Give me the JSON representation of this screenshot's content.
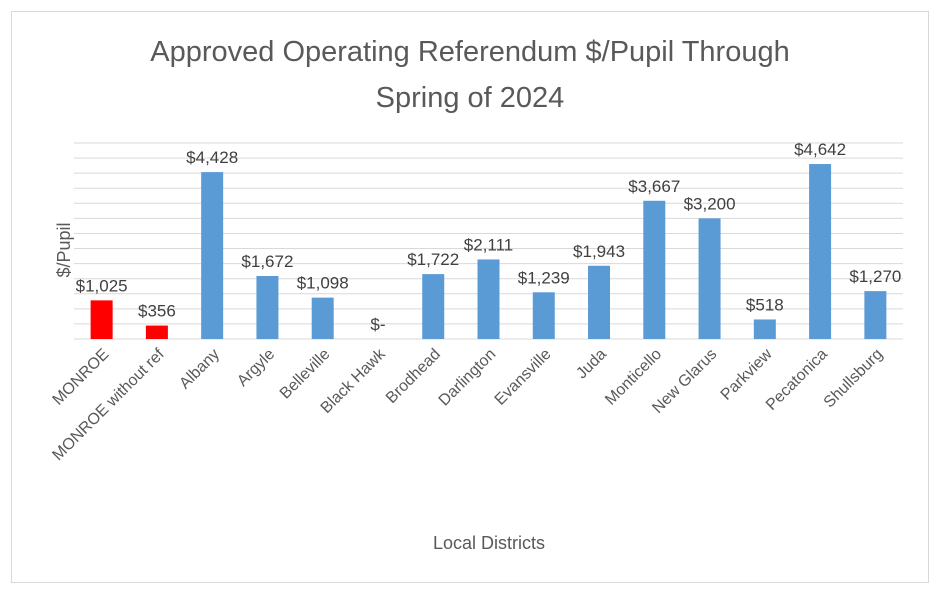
{
  "chart_data": {
    "type": "bar",
    "title": [
      "Approved Operating Referendum $/Pupil Through",
      "Spring of 2024"
    ],
    "xlabel": "Local Districts",
    "ylabel": "$/Pupil",
    "ylim": [
      0,
      5200
    ],
    "grid": true,
    "categories": [
      "MONROE",
      "MONROE without ref",
      "Albany",
      "Argyle",
      "Belleville",
      "Black Hawk",
      "Brodhead",
      "Darlington",
      "Evansville",
      "Juda",
      "Monticello",
      "New Glarus",
      "Parkview",
      "Pecatonica",
      "Shullsburg"
    ],
    "values": [
      1025,
      356,
      4428,
      1672,
      1098,
      0,
      1722,
      2111,
      1239,
      1943,
      3667,
      3200,
      518,
      4642,
      1270
    ],
    "data_labels": [
      "$1,025",
      "$356",
      "$4,428",
      "$1,672",
      "$1,098",
      "$-",
      "$1,722",
      "$2,111",
      "$1,239",
      "$1,943",
      "$3,667",
      "$3,200",
      "$518",
      "$4,642",
      "$1,270"
    ],
    "colors": [
      "#ff0000",
      "#ff0000",
      "#5b9bd5",
      "#5b9bd5",
      "#5b9bd5",
      "#5b9bd5",
      "#5b9bd5",
      "#5b9bd5",
      "#5b9bd5",
      "#5b9bd5",
      "#5b9bd5",
      "#5b9bd5",
      "#5b9bd5",
      "#5b9bd5",
      "#5b9bd5"
    ],
    "gridline_color": "#d9d9d9"
  }
}
